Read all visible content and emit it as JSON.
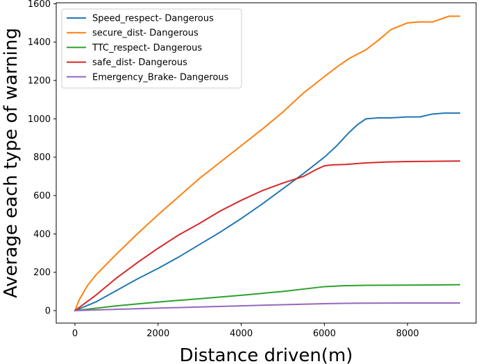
{
  "chart_data": {
    "type": "line",
    "title": "",
    "xlabel": "Distance driven(m)",
    "ylabel": "Average each type of warning",
    "xlim": [
      -450,
      9650
    ],
    "ylim": [
      -65,
      1605
    ],
    "xticks": [
      0,
      2000,
      4000,
      6000,
      8000
    ],
    "yticks": [
      0,
      200,
      400,
      600,
      800,
      1000,
      1200,
      1400,
      1600
    ],
    "grid": false,
    "legend_position": "top-left",
    "series": [
      {
        "name": "Speed_respect- Dangerous",
        "color": "#1f77b4",
        "x": [
          0,
          500,
          1000,
          1500,
          2000,
          2500,
          3000,
          3500,
          4000,
          4500,
          5000,
          5500,
          6000,
          6300,
          6600,
          6800,
          7000,
          7300,
          7600,
          8000,
          8300,
          8600,
          8900,
          9250
        ],
        "y": [
          0,
          45,
          105,
          165,
          220,
          280,
          345,
          410,
          480,
          555,
          635,
          715,
          800,
          860,
          930,
          970,
          1000,
          1005,
          1005,
          1010,
          1010,
          1025,
          1030,
          1030
        ]
      },
      {
        "name": "secure_dist- Dangerous",
        "color": "#ff7f0e",
        "x": [
          0,
          100,
          300,
          500,
          1000,
          1500,
          2000,
          2500,
          3000,
          3500,
          4000,
          4500,
          5000,
          5500,
          6000,
          6300,
          6600,
          7000,
          7300,
          7600,
          8000,
          8300,
          8600,
          8800,
          9000,
          9250
        ],
        "y": [
          0,
          55,
          130,
          185,
          295,
          400,
          500,
          595,
          690,
          775,
          860,
          945,
          1035,
          1135,
          1220,
          1270,
          1315,
          1360,
          1410,
          1465,
          1500,
          1505,
          1505,
          1520,
          1535,
          1535
        ]
      },
      {
        "name": "TTC_respect- Dangerous",
        "color": "#2ca02c",
        "x": [
          0,
          1000,
          2000,
          3000,
          4000,
          5000,
          6000,
          6500,
          7000,
          8000,
          9250
        ],
        "y": [
          0,
          25,
          45,
          62,
          80,
          100,
          125,
          130,
          132,
          133,
          135
        ]
      },
      {
        "name": "safe_dist- Dangerous",
        "color": "#d62728",
        "x": [
          0,
          500,
          1000,
          1500,
          2000,
          2500,
          3000,
          3500,
          4000,
          4500,
          5000,
          5500,
          5800,
          6000,
          6200,
          6500,
          7000,
          7500,
          8000,
          9250
        ],
        "y": [
          0,
          80,
          170,
          250,
          325,
          395,
          455,
          520,
          575,
          625,
          665,
          700,
          735,
          755,
          760,
          762,
          770,
          775,
          777,
          780
        ]
      },
      {
        "name": "Emergency_Brake- Dangerous",
        "color": "#9467bd",
        "x": [
          0,
          1000,
          2000,
          3000,
          4000,
          5000,
          6000,
          6500,
          7000,
          8000,
          9250
        ],
        "y": [
          0,
          7,
          13,
          19,
          25,
          31,
          36,
          38,
          39,
          40,
          40
        ]
      }
    ]
  }
}
